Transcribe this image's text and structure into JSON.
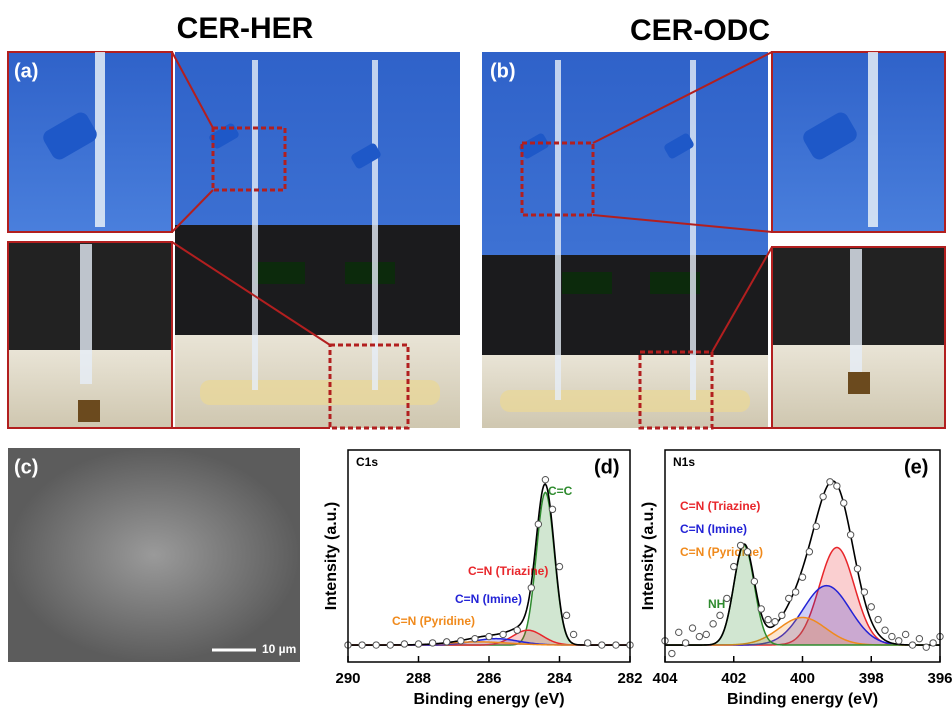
{
  "figure": {
    "titles": [
      "CER-HER",
      "CER-ODC"
    ],
    "panel_labels": [
      "(a)",
      "(b)",
      "(c)"
    ],
    "scale_bar": "10 µm"
  },
  "chart_data": [
    {
      "type": "xps",
      "panel_label": "(d)",
      "core_level": "C1s",
      "xlabel": "Binding energy (eV)",
      "ylabel": "Intensity (a.u.)",
      "xlim": [
        290,
        282
      ],
      "xticks": [
        290,
        288,
        286,
        284,
        282
      ],
      "ylim": [
        0,
        100
      ],
      "baseline": 8,
      "envelope_color": "#000000",
      "points": {
        "x": [
          290,
          289.6,
          289.2,
          288.8,
          288.4,
          288,
          287.6,
          287.2,
          286.8,
          286.4,
          286,
          285.6,
          285.2,
          284.8,
          284.6,
          284.4,
          284.2,
          284,
          283.8,
          283.6,
          283.2,
          282.8,
          282.4,
          282
        ],
        "values": [
          8,
          8,
          8,
          8,
          8.5,
          8.5,
          9,
          9.5,
          10,
          11,
          12,
          13,
          15,
          35,
          65,
          86,
          72,
          45,
          22,
          13,
          9,
          8,
          8,
          8
        ]
      },
      "series": [
        {
          "name": "C=C",
          "color": "#2e8b2e",
          "center": 284.4,
          "height": 72,
          "fwhm": 0.6
        },
        {
          "name": "C=N (Triazine)",
          "color": "#e8262b",
          "center": 284.9,
          "height": 7,
          "fwhm": 1.0
        },
        {
          "name": "C=N (Imine)",
          "color": "#2323d6",
          "center": 285.8,
          "height": 3,
          "fwhm": 1.5
        },
        {
          "name": "C=N (Pyridine)",
          "color": "#f08a1c",
          "center": 286.3,
          "height": 1.5,
          "fwhm": 2
        }
      ]
    },
    {
      "type": "xps",
      "panel_label": "(e)",
      "core_level": "N1s",
      "xlabel": "Binding energy (eV)",
      "ylabel": "Intensity (a.u.)",
      "xlim": [
        404,
        396
      ],
      "xticks": [
        404,
        402,
        400,
        398,
        396
      ],
      "ylim": [
        0,
        100
      ],
      "baseline": 8,
      "envelope_color": "#000000",
      "points": {
        "x": [
          404,
          403.8,
          403.6,
          403.4,
          403.2,
          403,
          402.8,
          402.6,
          402.4,
          402.2,
          402,
          401.8,
          401.6,
          401.4,
          401.2,
          401,
          400.8,
          400.6,
          400.4,
          400.2,
          400,
          399.8,
          399.6,
          399.4,
          399.2,
          399,
          398.8,
          398.6,
          398.4,
          398.2,
          398,
          397.8,
          397.6,
          397.4,
          397.2,
          397,
          396.8,
          396.6,
          396.4,
          396.2,
          396
        ],
        "values": [
          10,
          4,
          14,
          9,
          16,
          12,
          13,
          18,
          22,
          30,
          45,
          55,
          52,
          38,
          25,
          20,
          19,
          22,
          30,
          33,
          40,
          52,
          64,
          78,
          85,
          83,
          75,
          60,
          44,
          33,
          26,
          20,
          15,
          12,
          10,
          13,
          8,
          11,
          7,
          9,
          12
        ]
      },
      "series": [
        {
          "name": "C=N (Triazine)",
          "color": "#e8262b",
          "center": 399.0,
          "height": 46,
          "fwhm": 1.2
        },
        {
          "name": "C=N (Imine)",
          "color": "#2323d6",
          "center": 399.3,
          "height": 28,
          "fwhm": 1.6
        },
        {
          "name": "C=N (Pyridine)",
          "color": "#f08a1c",
          "center": 400.0,
          "height": 13,
          "fwhm": 1.6
        },
        {
          "name": "NH",
          "color": "#2e8b2e",
          "center": 401.7,
          "height": 47,
          "fwhm": 0.7
        }
      ]
    }
  ]
}
